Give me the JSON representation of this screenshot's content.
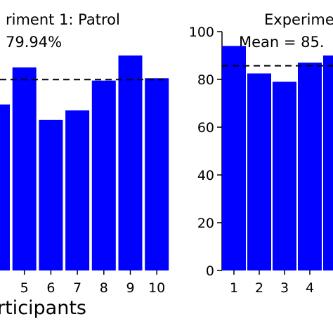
{
  "colors": {
    "bar": "#0000ff",
    "axis": "#000000",
    "mean_line": "#000000"
  },
  "shared": {
    "xlabel": "rticipants"
  },
  "chart_data": [
    {
      "type": "bar",
      "title": "riment 1: Patrol",
      "subtitle": "79.94%",
      "xlabel": "",
      "ylabel": "",
      "categories": [
        "",
        "5",
        "6",
        "7",
        "8",
        "9",
        "10"
      ],
      "values": [
        69.5,
        85,
        63,
        67,
        79.5,
        90,
        80.5
      ],
      "mean": 79.94,
      "ylim": [
        0,
        100
      ],
      "grid": false,
      "legend": "none"
    },
    {
      "type": "bar",
      "title": "Experime",
      "subtitle": "Mean = 85.",
      "xlabel": "",
      "ylabel": "",
      "categories": [
        "1",
        "2",
        "3",
        "4",
        ""
      ],
      "values": [
        94,
        82.5,
        79,
        87,
        90
      ],
      "mean": 85.7,
      "ylim": [
        0,
        100
      ],
      "yticks": [
        0,
        20,
        40,
        60,
        80,
        100
      ],
      "grid": false,
      "legend": "none"
    }
  ]
}
